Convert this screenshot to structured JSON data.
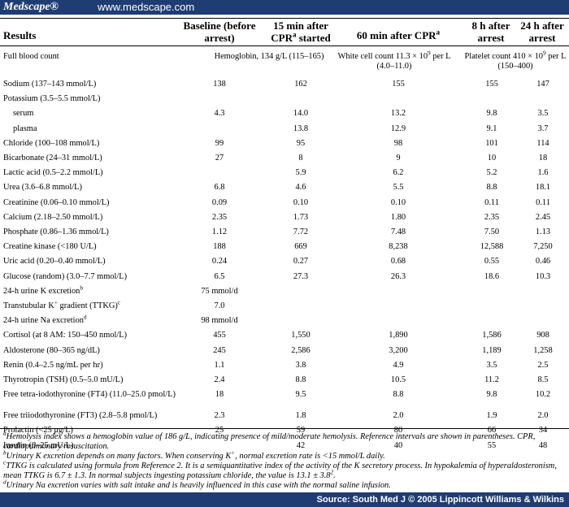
{
  "header": {
    "logo": "Medscape®",
    "url": "www.medscape.com"
  },
  "table": {
    "columns": {
      "results": "Results",
      "baseline": "Baseline (before arrest)",
      "min15_pre": "15 min after CPR",
      "min15_sup": "a",
      "min15_post": " started",
      "min60_pre": "60 min after CPR",
      "min60_sup": "a",
      "h8": "8 h after arrest",
      "h24": "24 h after arrest"
    },
    "full_blood_count": {
      "label": "Full blood count",
      "hemoglobin": "Hemoglobin, 134 g/L (115–165)",
      "wbc_pre": "White cell count 11.3 × 10",
      "wbc_sup": "9",
      "wbc_post": " per L (4.0–11.0)",
      "plt_pre": "Platelet count 410 × 10",
      "plt_sup": "9",
      "plt_post": " per L (150–400)"
    },
    "rows": [
      {
        "label": "Sodium (137–143 mmol/L)",
        "v": [
          "138",
          "162",
          "155",
          "155",
          "147"
        ]
      },
      {
        "label": "Potassium (3.5–5.5 mmol/L)",
        "v": [
          "",
          "",
          "",
          "",
          ""
        ]
      },
      {
        "label": "serum",
        "indent": true,
        "v": [
          "4.3",
          "14.0",
          "13.2",
          "9.8",
          "3.5"
        ]
      },
      {
        "label": "plasma",
        "indent": true,
        "v": [
          "",
          "13.8",
          "12.9",
          "9.1",
          "3.7"
        ]
      },
      {
        "label": "Chloride (100–108 mmol/L)",
        "v": [
          "99",
          "95",
          "98",
          "101",
          "114"
        ]
      },
      {
        "label": "Bicarbonate (24–31 mmol/L)",
        "v": [
          "27",
          "8",
          "9",
          "10",
          "18"
        ]
      },
      {
        "label": "Lactic acid (0.5–2.2 mmol/L)",
        "v": [
          "",
          "5.9",
          "6.2",
          "5.2",
          "1.6"
        ]
      },
      {
        "label": "Urea (3.6–6.8 mmol/L)",
        "v": [
          "6.8",
          "4.6",
          "5.5",
          "8.8",
          "18.1"
        ]
      },
      {
        "label": "Creatinine (0.06–0.10 mmol/L)",
        "v": [
          "0.09",
          "0.10",
          "0.10",
          "0.11",
          "0.11"
        ]
      },
      {
        "label": "Calcium (2.18–2.50 mmol/L)",
        "v": [
          "2.35",
          "1.73",
          "1.80",
          "2.35",
          "2.45"
        ]
      },
      {
        "label": "Phosphate (0.86–1.36 mmol/L)",
        "v": [
          "1.12",
          "7.72",
          "7.48",
          "7.50",
          "1.13"
        ]
      },
      {
        "label": "Creatine kinase (<180 U/L)",
        "v": [
          "188",
          "669",
          "8,238",
          "12,588",
          "7,250"
        ]
      },
      {
        "label": "Uric acid (0.20–0.40 mmol/L)",
        "v": [
          "0.24",
          "0.27",
          "0.68",
          "0.55",
          "0.46"
        ]
      },
      {
        "label": "Glucose (random) (3.0–7.7 mmol/L)",
        "v": [
          "6.5",
          "27.3",
          "26.3",
          "18.6",
          "10.3"
        ]
      },
      {
        "label": "24-h urine K excretion",
        "sup": "b",
        "v": [
          "75 mmol/d",
          "",
          "",
          "",
          ""
        ]
      },
      {
        "label": "Transtubular K",
        "kplus": "+",
        "post": " gradient (TTKG)",
        "sup": "c",
        "v": [
          "7.0",
          "",
          "",
          "",
          ""
        ]
      },
      {
        "label": "24-h urine Na excretion",
        "sup": "d",
        "v": [
          "98 mmol/d",
          "",
          "",
          "",
          ""
        ]
      },
      {
        "label": "Cortisol (at 8 AM: 150–450 nmol/L)",
        "v": [
          "455",
          "1,550",
          "1,890",
          "1,586",
          "908"
        ]
      },
      {
        "label": "Aldosterone (80–365 ng/dL)",
        "v": [
          "245",
          "2,586",
          "3,200",
          "1,189",
          "1,258"
        ]
      },
      {
        "label": "Renin (0.4–2.5 ng/mL per hr)",
        "v": [
          "1.1",
          "3.8",
          "4.9",
          "3.5",
          "2.5"
        ]
      },
      {
        "label": "Thyrotropin (TSH) (0.5–5.0 mU/L)",
        "v": [
          "2.4",
          "8.8",
          "10.5",
          "11.2",
          "8.5"
        ]
      },
      {
        "label": "Free tetra-iodothyronine (FT4) (11.0–25.0 pmol/L)",
        "tall": true,
        "v": [
          "18",
          "9.5",
          "8.8",
          "9.8",
          "10.2"
        ]
      },
      {
        "label": "Free triiodothyronine (FT3) (2.8–5.8 pmol/L)",
        "v": [
          "2.3",
          "1.8",
          "2.0",
          "1.9",
          "2.0"
        ]
      },
      {
        "label": "Prolactin (<25 μg/L)",
        "v": [
          "25",
          "59",
          "80",
          "66",
          "34"
        ]
      },
      {
        "label": "Insulin (6–25 mU/L)",
        "v": [
          "",
          "42",
          "40",
          "55",
          "48"
        ]
      }
    ]
  },
  "footnotes": {
    "a_sup": "a",
    "a": "Hemolysis index shows a hemoglobin value of 186 g/L, indicating presence of mild/moderate hemolysis. Reference intervals are shown in parentheses. CPR, cardiopulmonary resuscitation.",
    "b_sup": "b",
    "b_pre": "Urinary K excretion depends on many factors. When conserving K",
    "b_kplus": "+",
    "b_post": ", normal excretion rate is <15 mmol/L daily.",
    "c_sup": "c",
    "c_pre": "TTKG is calculated using formula from Reference 2. It is a semiquantitative index of the activity of the K secretory process. In hypokalemia of hyperaldosteronism, mean TTKG is 6.7 ± 1.3. In normal subjects ingesting potassium chloride, the value is 13.1 ± 3.8",
    "c_sup2": "2",
    "c_end": ".",
    "d_sup": "d",
    "d": "Urinary Na excretion varies with salt intake and is heavily influenced in this case with the normal saline infusion."
  },
  "source": "Source: South Med J © 2005 Lippincott Williams & Wilkins"
}
